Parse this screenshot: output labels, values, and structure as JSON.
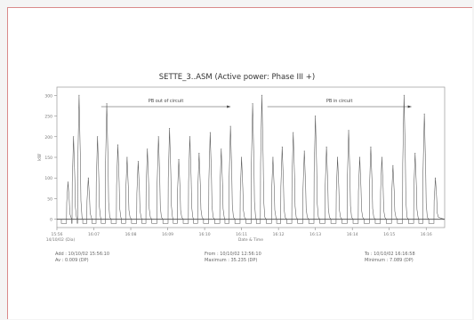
{
  "chart_data": {
    "type": "line",
    "title": "SETTE_3..ASM (Active power: Phase III +)",
    "ylabel": "kW",
    "xlabel": "Date & Time",
    "x_start_label": "15:56",
    "x_start_sublabel": "14/10/02 (Dia)",
    "x_ticks": [
      "16:07",
      "16:08",
      "16:09",
      "16:10",
      "16:11",
      "16:12",
      "16:13",
      "16:14",
      "16:15",
      "16:16"
    ],
    "y_ticks": [
      "0",
      "50",
      "100",
      "150",
      "200",
      "250",
      "300"
    ],
    "ylim": [
      -20,
      320
    ],
    "threshold": 0,
    "annotations": [
      {
        "label": "PB out of circuit",
        "arrow_from": 1.2,
        "arrow_to": 4.7
      },
      {
        "label": "PB in circuit",
        "arrow_from": 5.7,
        "arrow_to": 9.6
      }
    ],
    "series": [
      {
        "peaks": [
          {
            "x": 0.3,
            "y": 90
          },
          {
            "x": 0.45,
            "y": 200
          },
          {
            "x": 0.6,
            "y": 300
          },
          {
            "x": 0.85,
            "y": 100
          },
          {
            "x": 1.1,
            "y": 200
          },
          {
            "x": 1.35,
            "y": 280
          },
          {
            "x": 1.65,
            "y": 180
          },
          {
            "x": 1.9,
            "y": 150
          },
          {
            "x": 2.2,
            "y": 140
          },
          {
            "x": 2.45,
            "y": 170
          },
          {
            "x": 2.75,
            "y": 200
          },
          {
            "x": 3.05,
            "y": 220
          },
          {
            "x": 3.3,
            "y": 145
          },
          {
            "x": 3.6,
            "y": 200
          },
          {
            "x": 3.85,
            "y": 160
          },
          {
            "x": 4.15,
            "y": 210
          },
          {
            "x": 4.45,
            "y": 170
          },
          {
            "x": 4.7,
            "y": 225
          },
          {
            "x": 5.0,
            "y": 150
          },
          {
            "x": 5.3,
            "y": 280
          },
          {
            "x": 5.55,
            "y": 300
          },
          {
            "x": 5.85,
            "y": 150
          },
          {
            "x": 6.1,
            "y": 175
          },
          {
            "x": 6.4,
            "y": 210
          },
          {
            "x": 6.7,
            "y": 165
          },
          {
            "x": 7.0,
            "y": 250
          },
          {
            "x": 7.3,
            "y": 175
          },
          {
            "x": 7.6,
            "y": 150
          },
          {
            "x": 7.9,
            "y": 215
          },
          {
            "x": 8.2,
            "y": 150
          },
          {
            "x": 8.5,
            "y": 175
          },
          {
            "x": 8.8,
            "y": 150
          },
          {
            "x": 9.1,
            "y": 130
          },
          {
            "x": 9.4,
            "y": 300
          },
          {
            "x": 9.7,
            "y": 160
          },
          {
            "x": 9.95,
            "y": 255
          },
          {
            "x": 10.25,
            "y": 100
          }
        ]
      }
    ]
  },
  "footer": {
    "left": [
      "Add : 10/10/02 15:56:10",
      "Av : 0.009 (DP)"
    ],
    "center": [
      "From : 10/10/02 12:56:10",
      "Maximum : 35.235 (DP)"
    ],
    "right": [
      "To : 10/10/02 16:16:58",
      "Minimum : 7.089 (DP)"
    ]
  }
}
